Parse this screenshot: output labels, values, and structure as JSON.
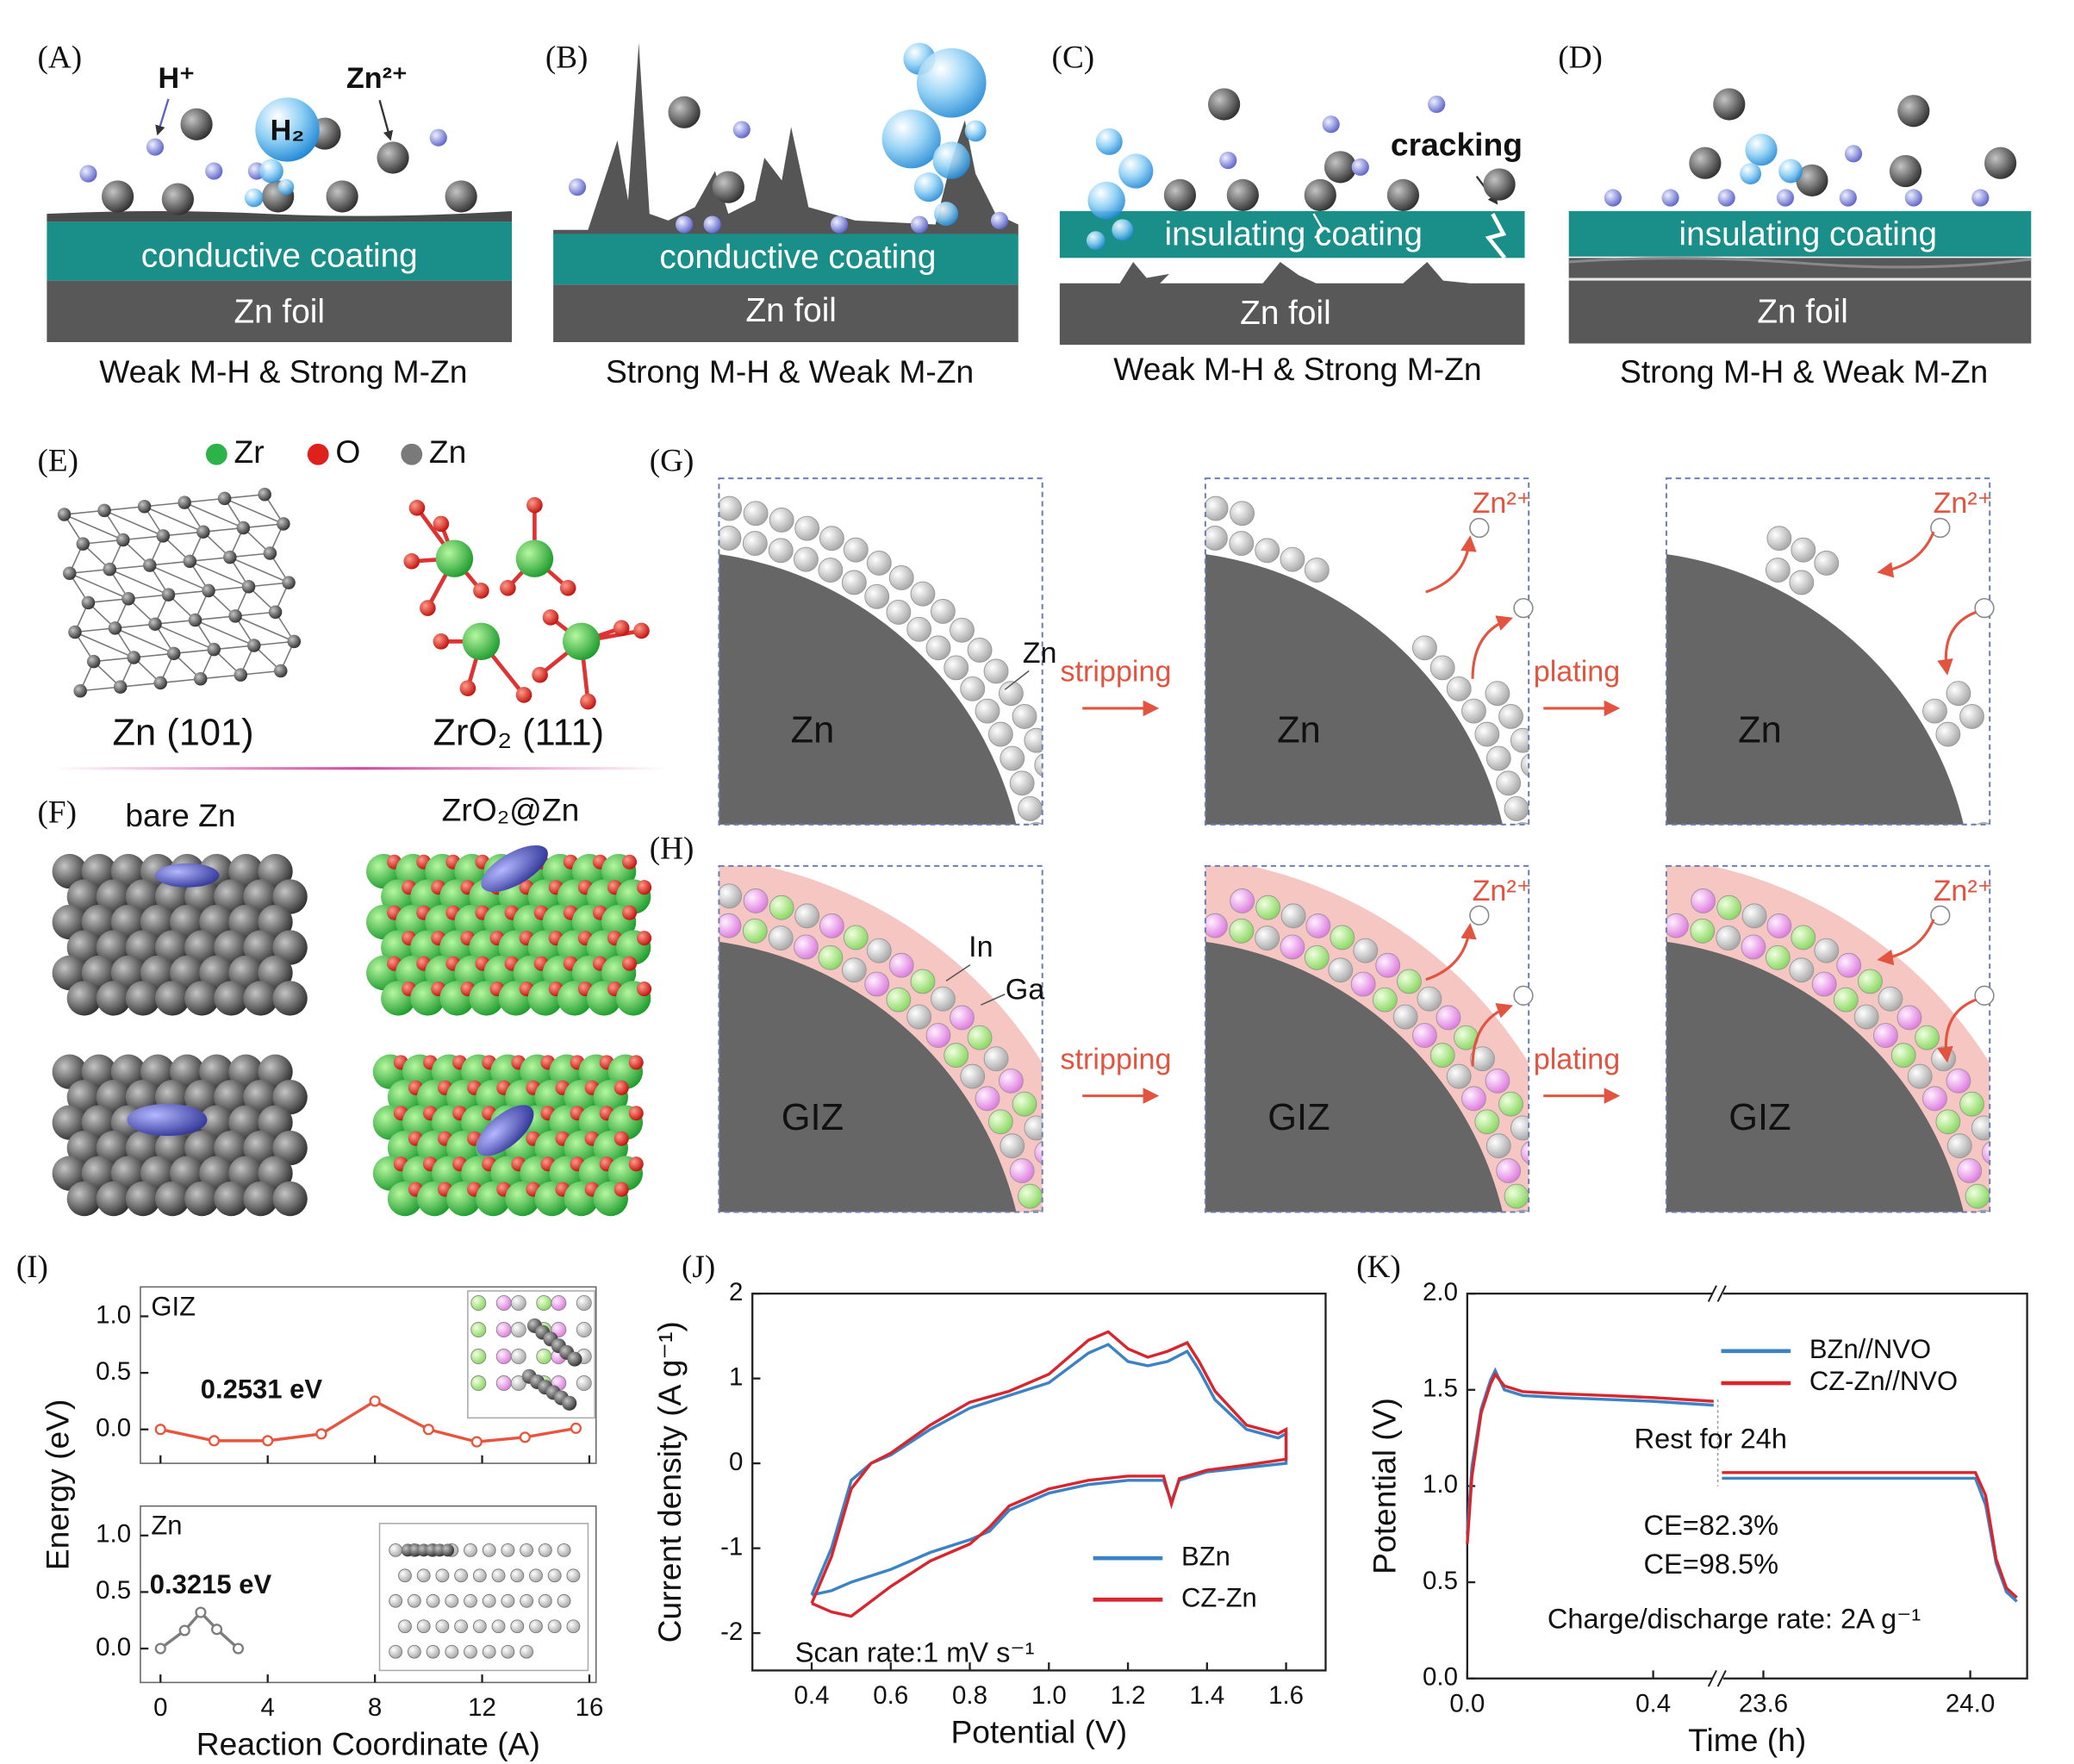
{
  "panels": {
    "A": {
      "label": "(A)",
      "proton": "H⁺",
      "zinc_ion": "Zn²⁺",
      "gas": "H₂",
      "coating": "conductive coating",
      "foil": "Zn foil",
      "caption": "Weak M-H & Strong M-Zn"
    },
    "B": {
      "label": "(B)",
      "coating": "conductive coating",
      "foil": "Zn foil",
      "caption": "Strong M-H & Weak M-Zn"
    },
    "C": {
      "label": "(C)",
      "annotation": "cracking",
      "coating": "insulating coating",
      "foil": "Zn foil",
      "caption": "Weak M-H & Strong M-Zn"
    },
    "D": {
      "label": "(D)",
      "coating": "insulating coating",
      "foil": "Zn foil",
      "caption": "Strong M-H & Weak M-Zn"
    },
    "E": {
      "label": "(E)",
      "legend": [
        {
          "name": "Zr",
          "color": "#2db34a"
        },
        {
          "name": "O",
          "color": "#e0201b"
        },
        {
          "name": "Zn",
          "color": "#7a7a7a"
        }
      ],
      "structures": [
        "Zn (101)",
        "ZrO₂ (111)"
      ]
    },
    "F": {
      "label": "(F)",
      "titles": [
        "bare Zn",
        "ZrO₂@Zn"
      ]
    },
    "G": {
      "label": "(G)",
      "core": "Zn",
      "layer": "Zn",
      "steps": [
        "stripping",
        "plating"
      ],
      "ion": "Zn²⁺"
    },
    "H": {
      "label": "(H)",
      "core": "GIZ",
      "layers": [
        "In",
        "Ga"
      ],
      "steps": [
        "stripping",
        "plating"
      ],
      "ion": "Zn²⁺"
    }
  },
  "chart_data": [
    {
      "type": "line",
      "label": "(I)",
      "subplots": true,
      "xlabel": "Reaction Coordinate (A)",
      "ylabel": "Energy (eV)",
      "xlim": [
        -0.75,
        16.25
      ],
      "xticks": [
        0,
        4,
        8,
        12,
        16
      ],
      "ylim": [
        -0.3,
        1.26
      ],
      "yticks": [
        {
          "value": 0,
          "label": "0.0"
        },
        0.5,
        {
          "value": 1,
          "label": "1.0"
        }
      ],
      "series": [
        {
          "name": "GIZ",
          "color": "#e8553d",
          "x": [
            0,
            2,
            4,
            6,
            8,
            10,
            11.8,
            13.6,
            15.5
          ],
          "values": [
            0,
            -0.1,
            -0.1,
            -0.04,
            0.25,
            0,
            -0.11,
            -0.07,
            0.01
          ],
          "annotation": "0.2531 eV"
        },
        {
          "name": "Zn",
          "color": "#7d7d7d",
          "x": [
            0,
            0.9,
            1.5,
            2.1,
            2.9
          ],
          "values": [
            0,
            0.16,
            0.32,
            0.17,
            0
          ],
          "annotation": "0.3215 eV"
        }
      ]
    },
    {
      "type": "line",
      "label": "(J)",
      "xlabel": "Potential (V)",
      "ylabel": "Current density (A g⁻¹)",
      "legend": "lower right",
      "xlim": [
        0.25,
        1.7
      ],
      "xticks": [
        0.4,
        0.6,
        0.8,
        {
          "value": 1,
          "label": "1.0"
        },
        1.2,
        1.4,
        1.6
      ],
      "ylim": [
        -2.44,
        2
      ],
      "yticks": [
        -2,
        -1,
        0,
        1,
        2
      ],
      "annotations": [
        "Scan rate:1 mV s⁻¹"
      ],
      "series": [
        {
          "name": "BZn",
          "color": "#3b83c4",
          "x": [
            0.4,
            0.45,
            0.5,
            0.55,
            0.6,
            0.7,
            0.8,
            0.9,
            1.0,
            1.1,
            1.15,
            1.2,
            1.25,
            1.3,
            1.35,
            1.38,
            1.42,
            1.5,
            1.58,
            1.6,
            1.6,
            1.5,
            1.4,
            1.33,
            1.31,
            1.29,
            1.2,
            1.1,
            1.0,
            0.9,
            0.85,
            0.8,
            0.7,
            0.6,
            0.5,
            0.45,
            0.4
          ],
          "values": [
            -1.55,
            -1.0,
            -0.2,
            0.0,
            0.1,
            0.4,
            0.65,
            0.8,
            0.95,
            1.3,
            1.4,
            1.2,
            1.15,
            1.2,
            1.32,
            1.1,
            0.75,
            0.4,
            0.3,
            0.35,
            0.0,
            -0.05,
            -0.1,
            -0.2,
            -0.45,
            -0.2,
            -0.2,
            -0.25,
            -0.35,
            -0.55,
            -0.8,
            -0.9,
            -1.05,
            -1.25,
            -1.4,
            -1.5,
            -1.55
          ]
        },
        {
          "name": "CZ-Zn",
          "color": "#d8262e",
          "x": [
            0.4,
            0.45,
            0.5,
            0.55,
            0.6,
            0.7,
            0.8,
            0.9,
            1.0,
            1.1,
            1.15,
            1.2,
            1.25,
            1.3,
            1.35,
            1.38,
            1.42,
            1.5,
            1.58,
            1.6,
            1.6,
            1.5,
            1.4,
            1.33,
            1.31,
            1.29,
            1.2,
            1.1,
            1.0,
            0.9,
            0.85,
            0.8,
            0.7,
            0.6,
            0.5,
            0.45,
            0.4
          ],
          "values": [
            -1.65,
            -1.1,
            -0.3,
            0.0,
            0.12,
            0.45,
            0.72,
            0.85,
            1.05,
            1.45,
            1.55,
            1.35,
            1.25,
            1.32,
            1.42,
            1.2,
            0.85,
            0.45,
            0.35,
            0.4,
            0.05,
            -0.02,
            -0.08,
            -0.18,
            -0.48,
            -0.15,
            -0.15,
            -0.2,
            -0.3,
            -0.5,
            -0.75,
            -0.95,
            -1.15,
            -1.45,
            -1.8,
            -1.75,
            -1.65
          ]
        }
      ]
    },
    {
      "type": "line",
      "label": "(K)",
      "xlabel": "Time (h)",
      "ylabel": "Potential (V)",
      "legend": "upper right",
      "xlim": [
        0,
        24.11
      ],
      "xbreak": [
        0.53,
        23.52
      ],
      "xticks": [
        {
          "value": 0,
          "label": "0.0"
        },
        0.4,
        23.6,
        {
          "value": 24,
          "label": "24.0"
        }
      ],
      "ylim": [
        0,
        2
      ],
      "yticks": [
        {
          "value": 0,
          "label": "0.0"
        },
        0.5,
        {
          "value": 1,
          "label": "1.0"
        },
        1.5,
        {
          "value": 2,
          "label": "2.0"
        }
      ],
      "annotations": [
        "Rest for 24h",
        "CE=82.3%",
        "CE=98.5%",
        "Charge/discharge rate: 2A g⁻¹"
      ],
      "series": [
        {
          "name": "BZn//NVO",
          "color": "#3b83c4",
          "x": [
            0,
            0.01,
            0.03,
            0.05,
            0.06,
            0.08,
            0.12,
            0.2,
            0.3,
            0.4,
            0.53,
            23.52,
            23.7,
            23.9,
            24.01,
            24.03,
            24.05,
            24.07,
            24.09
          ],
          "values": [
            0.75,
            1.1,
            1.4,
            1.55,
            1.6,
            1.5,
            1.47,
            1.46,
            1.45,
            1.44,
            1.42,
            1.04,
            1.04,
            1.04,
            1.04,
            0.9,
            0.6,
            0.45,
            0.4
          ]
        },
        {
          "name": "CZ-Zn//NVO",
          "color": "#d8262e",
          "x": [
            0,
            0.01,
            0.03,
            0.05,
            0.06,
            0.08,
            0.12,
            0.2,
            0.3,
            0.4,
            0.53,
            23.52,
            23.7,
            23.9,
            24.01,
            24.03,
            24.05,
            24.07,
            24.09
          ],
          "values": [
            0.7,
            1.05,
            1.38,
            1.53,
            1.58,
            1.52,
            1.49,
            1.48,
            1.47,
            1.46,
            1.44,
            1.07,
            1.07,
            1.07,
            1.07,
            0.95,
            0.62,
            0.47,
            0.42
          ]
        }
      ]
    }
  ]
}
